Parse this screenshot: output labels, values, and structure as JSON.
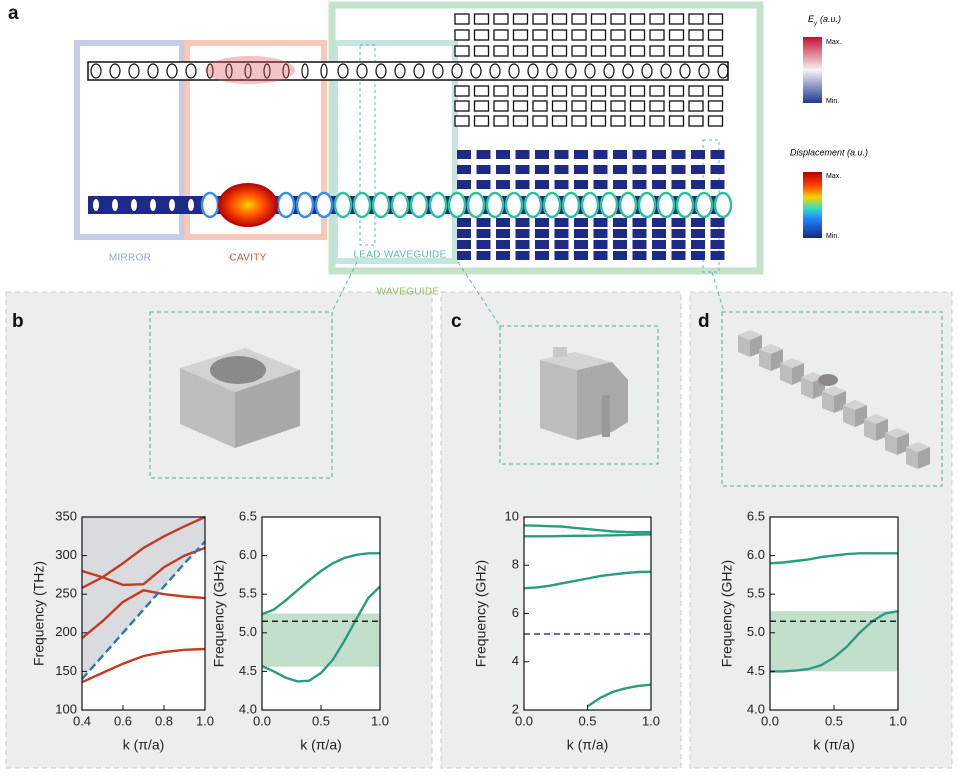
{
  "panel_a": {
    "label": "a",
    "regions": [
      "MIRROR",
      "CAVITY",
      "LEAD WAVEGUIDE",
      "WAVEGUIDE"
    ],
    "colorbars": [
      {
        "symbol": "E",
        "subscript": "y",
        "unit": "(a.u.)",
        "max": "Max.",
        "min": "Min."
      },
      {
        "title": "Displacement (a.u.)",
        "max": "Max.",
        "min": "Min."
      }
    ]
  },
  "panel_labels": [
    "b",
    "c",
    "d"
  ],
  "chart_data": [
    {
      "type": "line",
      "xlabel": "k (π/a)",
      "ylabel": "Frequency (THz)",
      "xlim": [
        0.4,
        1
      ],
      "ylim": [
        100,
        350
      ],
      "xticks": [
        0.4,
        0.6,
        0.8,
        {
          "value": 1,
          "label": "1.0"
        }
      ],
      "yticks": [
        100,
        150,
        200,
        250,
        300,
        350
      ],
      "x": [
        0.4,
        0.5,
        0.6,
        0.7,
        0.8,
        0.9,
        1.0
      ],
      "series": [
        {
          "color": "#c23b22",
          "values": [
            136,
            148,
            160,
            170,
            175,
            178,
            179
          ]
        },
        {
          "color": "#c23b22",
          "values": [
            193,
            215,
            240,
            255,
            250,
            247,
            245
          ]
        },
        {
          "color": "#c23b22",
          "values": [
            280,
            272,
            262,
            263,
            285,
            300,
            310
          ]
        },
        {
          "color": "#c23b22",
          "values": [
            258,
            272,
            290,
            310,
            325,
            338,
            350
          ]
        },
        {
          "color": "#2e75b6",
          "dashed": true,
          "fill_above": "#d5d7dc",
          "values": [
            140,
            170,
            200,
            230,
            260,
            290,
            318
          ]
        }
      ]
    },
    {
      "type": "line",
      "xlabel": "k (π/a)",
      "ylabel": "Frequency (GHz)",
      "xlim": [
        0,
        1
      ],
      "ylim": [
        4,
        6.5
      ],
      "xticks": [
        {
          "value": 0,
          "label": "0.0"
        },
        0.5,
        {
          "value": 1,
          "label": "1.0"
        }
      ],
      "yticks": [
        {
          "value": 4,
          "label": "4.0"
        },
        4.5,
        {
          "value": 5,
          "label": "5.0"
        },
        5.5,
        {
          "value": 6,
          "label": "6.0"
        },
        6.5
      ],
      "band": [
        4.56,
        5.25
      ],
      "band_color": "#b7d9c2",
      "hline": 5.15,
      "hline_color": "#222222",
      "x": [
        0,
        0.1,
        0.2,
        0.3,
        0.4,
        0.5,
        0.6,
        0.7,
        0.8,
        0.9,
        1.0
      ],
      "series": [
        {
          "color": "#2a9d7f",
          "values": [
            5.24,
            5.3,
            5.42,
            5.55,
            5.68,
            5.8,
            5.9,
            5.97,
            6.01,
            6.03,
            6.03
          ]
        },
        {
          "color": "#2a9d7f",
          "values": [
            4.57,
            4.5,
            4.42,
            4.37,
            4.38,
            4.48,
            4.65,
            4.9,
            5.18,
            5.45,
            5.6
          ]
        }
      ]
    },
    {
      "type": "line",
      "xlabel": "k (π/a)",
      "ylabel": "Frequency (GHz)",
      "xlim": [
        0,
        1
      ],
      "ylim": [
        2,
        10
      ],
      "xticks": [
        {
          "value": 0,
          "label": "0.0"
        },
        0.5,
        {
          "value": 1,
          "label": "1.0"
        }
      ],
      "yticks": [
        2,
        4,
        6,
        8,
        10
      ],
      "hline": 5.15,
      "hline_color": "#3a3f7a",
      "x": [
        0,
        0.1,
        0.2,
        0.3,
        0.4,
        0.5,
        0.6,
        0.7,
        0.8,
        0.9,
        1.0
      ],
      "series": [
        {
          "color": "#2a9d7f",
          "values": [
            9.65,
            9.64,
            9.62,
            9.6,
            9.55,
            9.5,
            9.45,
            9.4,
            9.38,
            9.37,
            9.37
          ]
        },
        {
          "color": "#2a9d7f",
          "values": [
            9.2,
            9.2,
            9.2,
            9.21,
            9.22,
            9.22,
            9.23,
            9.24,
            9.25,
            9.27,
            9.28
          ]
        },
        {
          "color": "#2a9d7f",
          "values": [
            7.05,
            7.08,
            7.15,
            7.25,
            7.35,
            7.45,
            7.55,
            7.62,
            7.68,
            7.72,
            7.73
          ]
        },
        {
          "color": "#2a9d7f",
          "values": [
            null,
            null,
            null,
            null,
            null,
            2.15,
            2.5,
            2.75,
            2.9,
            3.0,
            3.05
          ]
        }
      ]
    },
    {
      "type": "line",
      "xlabel": "k (π/a)",
      "ylabel": "Frequency (GHz)",
      "xlim": [
        0,
        1
      ],
      "ylim": [
        4,
        6.5
      ],
      "xticks": [
        {
          "value": 0,
          "label": "0.0"
        },
        0.5,
        {
          "value": 1,
          "label": "1.0"
        }
      ],
      "yticks": [
        {
          "value": 4,
          "label": "4.0"
        },
        4.5,
        {
          "value": 5,
          "label": "5.0"
        },
        5.5,
        {
          "value": 6,
          "label": "6.0"
        },
        6.5
      ],
      "band": [
        4.5,
        5.28
      ],
      "band_color": "#b7d9c2",
      "hline": 5.15,
      "hline_color": "#222222",
      "x": [
        0,
        0.1,
        0.2,
        0.3,
        0.4,
        0.5,
        0.6,
        0.7,
        0.8,
        0.9,
        1.0
      ],
      "series": [
        {
          "color": "#2a9d7f",
          "values": [
            5.9,
            5.91,
            5.93,
            5.95,
            5.98,
            6.0,
            6.02,
            6.03,
            6.03,
            6.03,
            6.03
          ]
        },
        {
          "color": "#2a9d7f",
          "values": [
            4.5,
            4.5,
            4.51,
            4.53,
            4.58,
            4.68,
            4.82,
            5.0,
            5.15,
            5.25,
            5.28
          ]
        }
      ]
    }
  ]
}
